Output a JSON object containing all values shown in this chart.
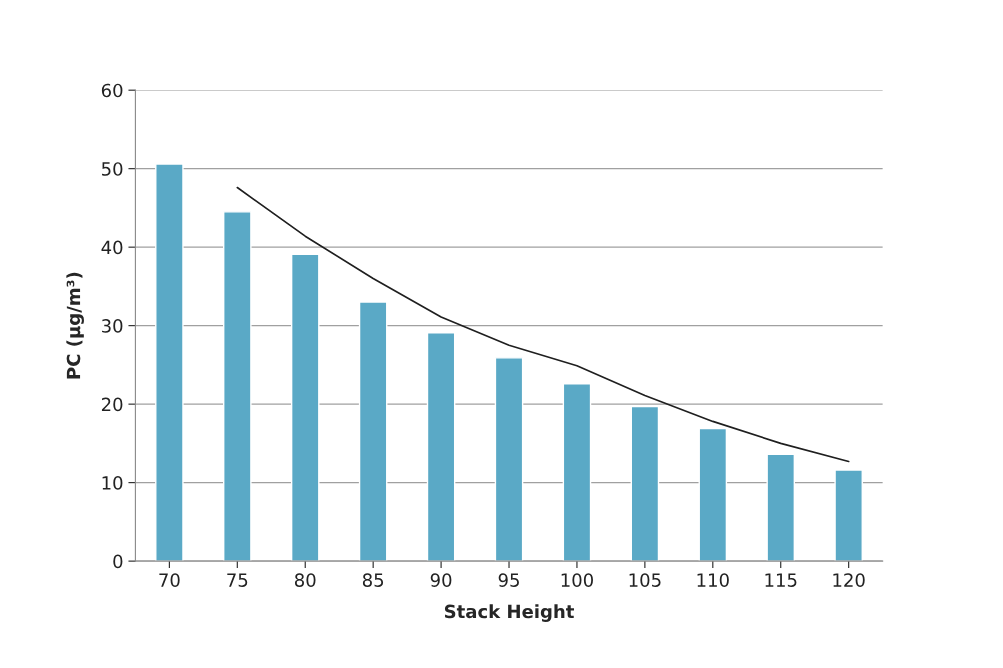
{
  "chart_data": {
    "type": "bar",
    "xlabel": "Stack Height",
    "ylabel": "PC (µg/m³)",
    "categories": [
      "70",
      "75",
      "80",
      "85",
      "90",
      "95",
      "100",
      "105",
      "110",
      "115",
      "120"
    ],
    "series": [
      {
        "color": "#5aa9c6",
        "values": [
          50.6,
          44.5,
          39.1,
          33.0,
          29.1,
          25.9,
          22.6,
          19.7,
          16.9,
          13.6,
          11.6
        ]
      },
      {
        "type": "line",
        "color": "#1f1f1f",
        "values": [
          null,
          47.6,
          41.4,
          36.0,
          31.1,
          27.5,
          24.9,
          21.1,
          17.8,
          15.0,
          12.7
        ]
      }
    ],
    "ylim": [
      0,
      60
    ],
    "yticks": [
      0,
      10,
      20,
      30,
      40,
      50,
      60
    ],
    "grid": "y",
    "legend": false
  }
}
